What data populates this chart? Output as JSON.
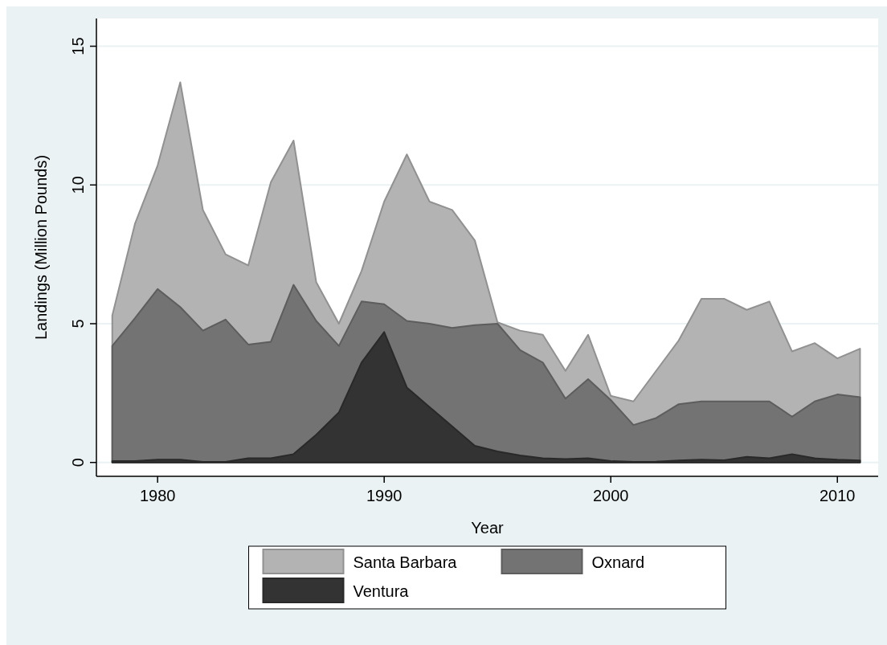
{
  "chart_data": {
    "type": "area",
    "xlabel": "Year",
    "ylabel": "Landings (Million Pounds)",
    "x": [
      1978,
      1979,
      1980,
      1981,
      1982,
      1983,
      1984,
      1985,
      1986,
      1987,
      1988,
      1989,
      1990,
      1991,
      1992,
      1993,
      1994,
      1995,
      1996,
      1997,
      1998,
      1999,
      2000,
      2001,
      2002,
      2003,
      2004,
      2005,
      2006,
      2007,
      2008,
      2009,
      2010,
      2011
    ],
    "xlim": [
      1977.3,
      2011.8
    ],
    "xticks": [
      1980,
      1990,
      2000,
      2010
    ],
    "ylim": [
      -0.5,
      16
    ],
    "yticks": [
      0,
      5,
      10,
      15
    ],
    "grid": "y",
    "legend": "bottom",
    "series": [
      {
        "name": "Santa Barbara",
        "color": "#b3b3b3",
        "values": [
          5.3,
          8.6,
          10.7,
          13.7,
          9.1,
          7.5,
          7.1,
          10.1,
          11.6,
          6.5,
          5.0,
          6.9,
          9.4,
          11.1,
          9.4,
          9.1,
          8.0,
          5.05,
          4.75,
          4.6,
          3.3,
          4.6,
          2.4,
          2.2,
          3.3,
          4.4,
          5.9,
          5.9,
          5.5,
          5.8,
          4.0,
          4.3,
          3.75,
          4.1
        ]
      },
      {
        "name": "Oxnard",
        "color": "#737373",
        "values": [
          4.2,
          5.2,
          6.25,
          5.6,
          4.75,
          5.15,
          4.25,
          4.35,
          6.4,
          5.1,
          4.2,
          5.8,
          5.7,
          5.1,
          5.0,
          4.85,
          4.95,
          5.0,
          4.05,
          3.6,
          2.3,
          3.0,
          2.25,
          1.35,
          1.6,
          2.1,
          2.2,
          2.2,
          2.2,
          2.2,
          1.65,
          2.2,
          2.45,
          2.35
        ]
      },
      {
        "name": "Ventura",
        "color": "#333333",
        "values": [
          0.05,
          0.05,
          0.1,
          0.1,
          0.02,
          0.02,
          0.15,
          0.15,
          0.3,
          1.0,
          1.8,
          3.6,
          4.7,
          2.7,
          2.0,
          1.3,
          0.6,
          0.4,
          0.25,
          0.15,
          0.12,
          0.15,
          0.05,
          0.02,
          0.03,
          0.07,
          0.1,
          0.08,
          0.2,
          0.15,
          0.3,
          0.15,
          0.1,
          0.07
        ]
      }
    ]
  }
}
